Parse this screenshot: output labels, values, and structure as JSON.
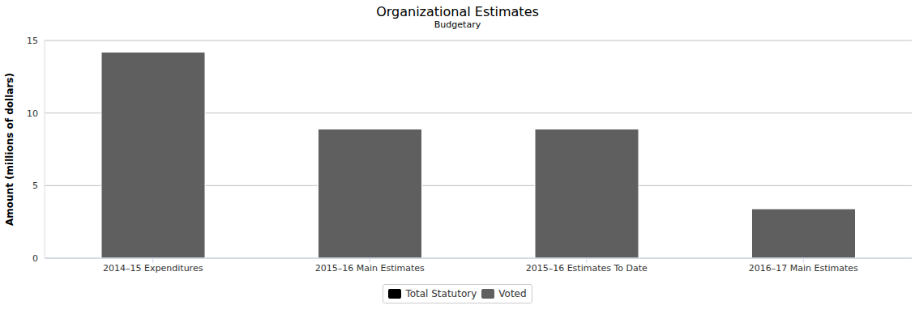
{
  "chart_data": {
    "type": "bar",
    "title": "Organizational Estimates",
    "subtitle": "Budgetary",
    "y_label": "Amount (millions of dollars)",
    "categories": [
      "2014–15 Expenditures",
      "2015–16 Main Estimates",
      "2015–16 Estimates To Date",
      "2016–17 Main Estimates"
    ],
    "series": [
      {
        "name": "Total Statutory",
        "color": "#000000",
        "values": [
          0,
          0,
          0,
          0
        ]
      },
      {
        "name": "Voted",
        "color": "#5f5f5f",
        "values": [
          14.2,
          8.9,
          8.9,
          3.4
        ]
      }
    ],
    "ylim": [
      0,
      15
    ],
    "yticks": [
      0,
      5,
      10,
      15
    ],
    "grid": true,
    "stacked": true,
    "legend": "bottom"
  }
}
